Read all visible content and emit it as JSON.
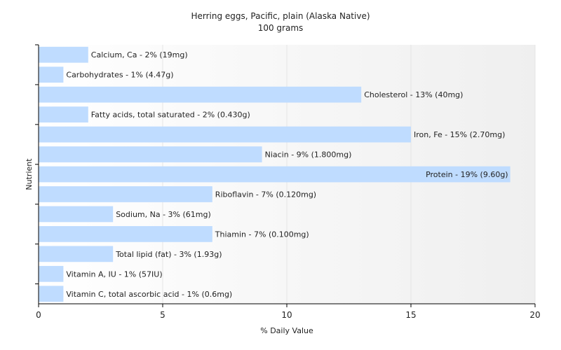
{
  "chart_data": {
    "type": "bar",
    "orientation": "horizontal",
    "title": "Herring eggs, Pacific, plain (Alaska Native)",
    "subtitle": "100 grams",
    "xlabel": "% Daily Value",
    "ylabel": "Nutrient",
    "xlim": [
      0,
      20
    ],
    "xticks": [
      "0",
      "5",
      "10",
      "15",
      "20"
    ],
    "grid": true,
    "bar_color": "#bfdcff",
    "categories": [
      "Calcium, Ca",
      "Carbohydrates",
      "Cholesterol",
      "Fatty acids, total saturated",
      "Iron, Fe",
      "Niacin",
      "Protein",
      "Riboflavin",
      "Sodium, Na",
      "Thiamin",
      "Total lipid (fat)",
      "Vitamin A, IU",
      "Vitamin C, total ascorbic acid"
    ],
    "values": [
      2,
      1,
      13,
      2,
      15,
      9,
      19,
      7,
      3,
      7,
      3,
      1,
      1
    ],
    "labels": [
      "Calcium, Ca - 2% (19mg)",
      "Carbohydrates - 1% (4.47g)",
      "Cholesterol - 13% (40mg)",
      "Fatty acids, total saturated - 2% (0.430g)",
      "Iron, Fe - 15% (2.70mg)",
      "Niacin - 9% (1.800mg)",
      "Protein - 19% (9.60g)",
      "Riboflavin - 7% (0.120mg)",
      "Sodium, Na - 3% (61mg)",
      "Thiamin - 7% (0.100mg)",
      "Total lipid (fat) - 3% (1.93g)",
      "Vitamin A, IU - 1% (57IU)",
      "Vitamin C, total ascorbic acid - 1% (0.6mg)"
    ]
  }
}
